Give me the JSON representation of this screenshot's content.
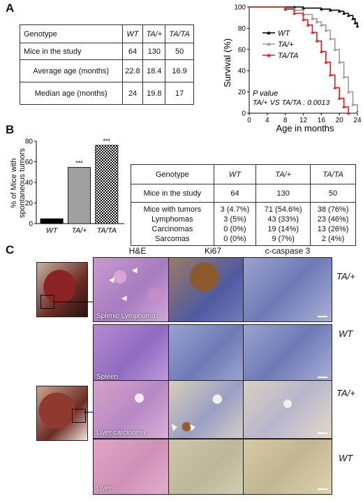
{
  "panel_letters": {
    "a": "A",
    "b": "B",
    "c": "C"
  },
  "table_a": {
    "headers": [
      "Genotype",
      "WT",
      "TA/+",
      "TA/TA"
    ],
    "rows": [
      {
        "label": "Mice in the study",
        "values": [
          "64",
          "130",
          "50"
        ]
      },
      {
        "label": "Average age (months)",
        "values": [
          "22.8",
          "18.4",
          "16.9"
        ]
      },
      {
        "label": "Median age (months)",
        "values": [
          "24",
          "19.8",
          "17"
        ]
      }
    ]
  },
  "table_b": {
    "headers": [
      "Genotype",
      "WT",
      "TA/+",
      "TA/TA"
    ],
    "rows": [
      {
        "label": "Mice in the study",
        "values": [
          "64",
          "130",
          "50"
        ]
      },
      {
        "label": "Mice with tumors",
        "values": [
          "3 (4.7%)",
          "71 (54.6%)",
          "38 (76%)"
        ]
      },
      {
        "label": "Lymphomas",
        "values": [
          "3 (5%)",
          "43 (33%)",
          "23 (46%)"
        ]
      },
      {
        "label": "Carcinomas",
        "values": [
          "0 (0%)",
          "19 (14%)",
          "13 (26%)"
        ]
      },
      {
        "label": "Sarcomas",
        "values": [
          "0 (0%)",
          "9 (7%)",
          "2 (4%)"
        ]
      }
    ]
  },
  "chart_data": [
    {
      "type": "line",
      "ylabel": "Survival (%)",
      "xlabel": "Age in months",
      "xlim": [
        0,
        24
      ],
      "ylim": [
        0,
        100
      ],
      "xticks": [
        0,
        4,
        8,
        12,
        16,
        20,
        24
      ],
      "yticks": [
        0,
        20,
        40,
        60,
        80,
        100
      ],
      "annotation": [
        "P value",
        "TA/+ VS TA/TA : 0.0013"
      ],
      "legend_position": "top-left",
      "series": [
        {
          "name": "WT",
          "color": "#000000",
          "marker": "triangle-up",
          "x": [
            0,
            10,
            12,
            16,
            18,
            20,
            21,
            22,
            23,
            23.5,
            24
          ],
          "y": [
            100,
            100,
            99,
            98,
            97,
            96,
            94,
            92,
            89,
            85,
            82
          ]
        },
        {
          "name": "TA/+",
          "color": "#9a9a9a",
          "marker": "triangle-up",
          "x": [
            0,
            8,
            10,
            12,
            14,
            15,
            16,
            17,
            18,
            19,
            20,
            21,
            22,
            23,
            24
          ],
          "y": [
            100,
            99,
            97,
            93,
            89,
            86,
            83,
            78,
            70,
            60,
            48,
            34,
            20,
            8,
            2
          ]
        },
        {
          "name": "TA/TA",
          "color": "#e0191b",
          "marker": "triangle-up",
          "x": [
            0,
            8,
            10,
            12,
            13,
            14,
            15,
            16,
            17,
            18,
            19,
            20,
            21,
            22
          ],
          "y": [
            100,
            98,
            94,
            88,
            83,
            76,
            68,
            58,
            48,
            36,
            24,
            14,
            6,
            0
          ]
        }
      ]
    },
    {
      "type": "bar",
      "ylabel": "% of Mice with spontaneous tumors",
      "categories": [
        "WT",
        "TA/+",
        "TA/TA"
      ],
      "values": [
        4.7,
        54.6,
        76
      ],
      "ylim": [
        0,
        80
      ],
      "yticks": [
        0,
        20,
        40,
        60,
        80
      ],
      "significance": [
        "",
        "***",
        "***"
      ],
      "colors": [
        "#000000",
        "#a0a0a0",
        "checkered"
      ]
    }
  ],
  "panel_c": {
    "column_headers": [
      "H&E",
      "Ki67",
      "c-caspase 3"
    ],
    "row_labels": [
      "TA/+",
      "WT",
      "TA/+",
      "WT"
    ],
    "tile_labels": [
      "Splenic Lymphoma",
      "Spleen",
      "Liver carcinoma",
      "Liver"
    ]
  }
}
